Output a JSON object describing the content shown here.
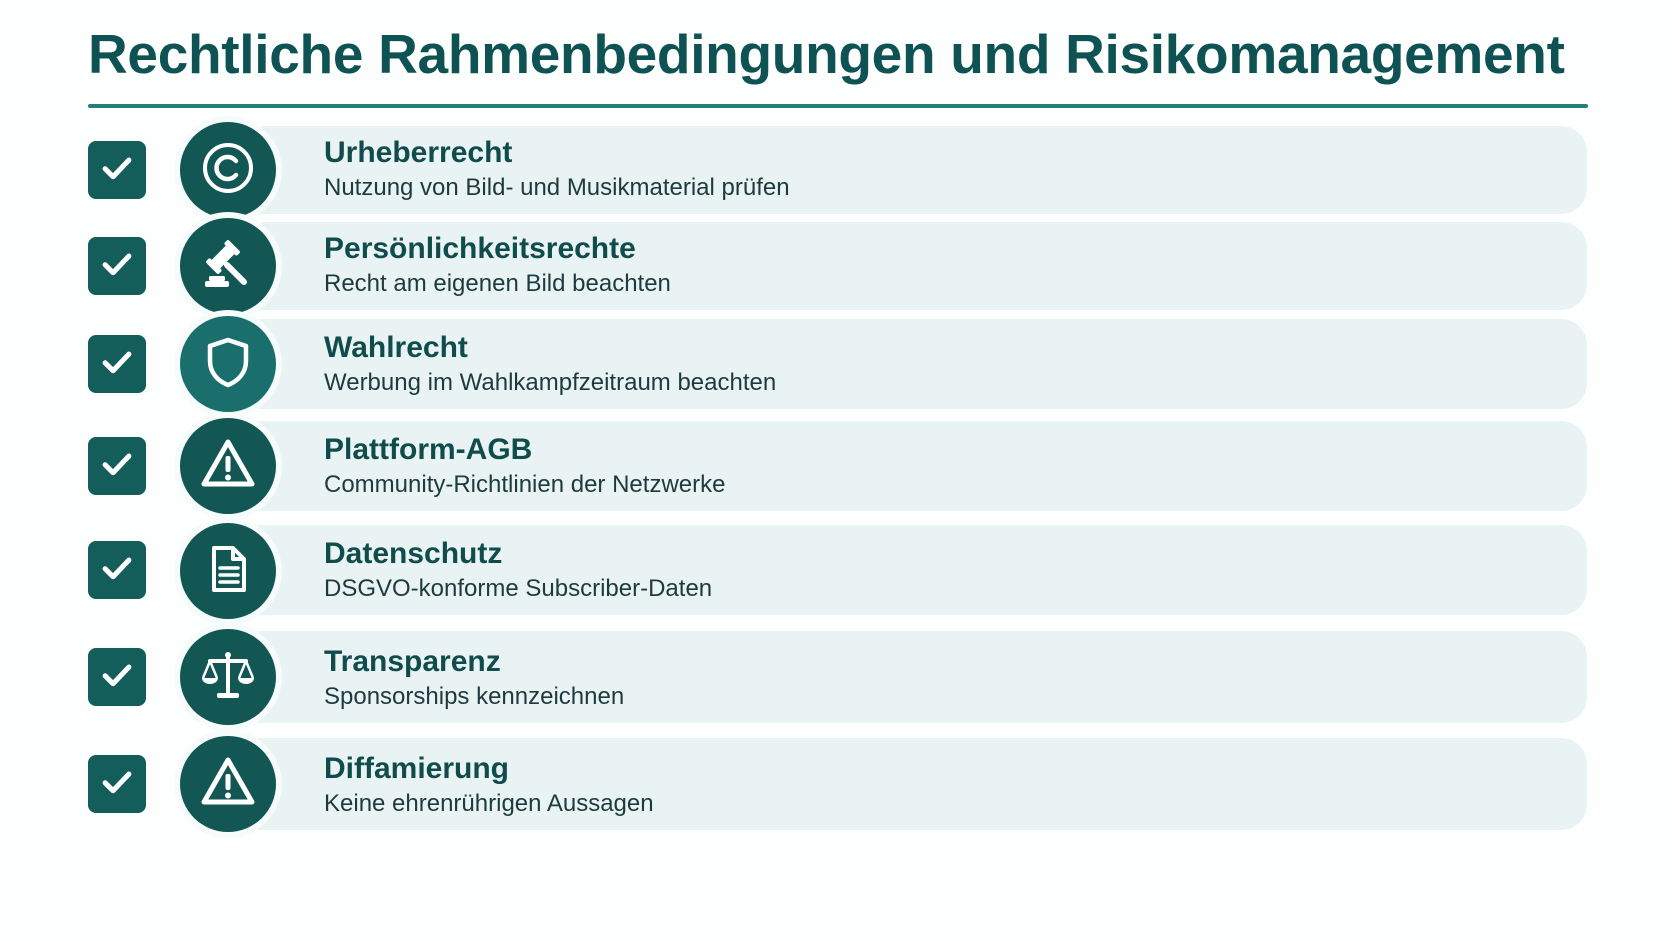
{
  "title": "Rechtliche Rahmenbedingungen und Risikomanagement",
  "colors": {
    "primary": "#135755",
    "accent_line": "#25807d",
    "row_background": "#eaf3f4",
    "title_text": "#0f5253"
  },
  "items": [
    {
      "title": "Urheberrecht",
      "desc": "Nutzung von Bild- und Musikmaterial prüfen",
      "icon": "copyright-icon",
      "checked": true
    },
    {
      "title": "Persönlichkeitsrechte",
      "desc": "Recht am eigenen Bild beachten",
      "icon": "gavel-icon",
      "checked": true
    },
    {
      "title": "Wahlrecht",
      "desc": "Werbung im Wahlkampfzeitraum beachten",
      "icon": "shield-icon",
      "checked": true
    },
    {
      "title": "Plattform-AGB",
      "desc": "Community-Richtlinien der Netzwerke",
      "icon": "warning-icon",
      "checked": true
    },
    {
      "title": "Datenschutz",
      "desc": "DSGVO-konforme Subscriber-Daten",
      "icon": "document-icon",
      "checked": true
    },
    {
      "title": "Transparenz",
      "desc": "Sponsorships kennzeichnen",
      "icon": "scales-icon",
      "checked": true
    },
    {
      "title": "Diffamierung",
      "desc": "Keine ehrenrührigen Aussagen",
      "icon": "warning-icon",
      "checked": true
    }
  ]
}
